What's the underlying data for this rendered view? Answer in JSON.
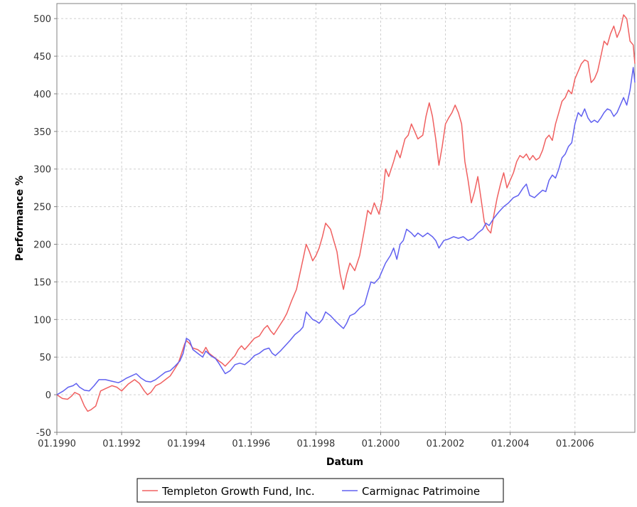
{
  "chart_data": {
    "type": "line",
    "xlabel": "Datum",
    "ylabel": "Performance %",
    "xlim": [
      1990.0,
      2007.85
    ],
    "ylim": [
      -50,
      520
    ],
    "x_ticks": [
      {
        "value": 1990,
        "label": "01.1990"
      },
      {
        "value": 1992,
        "label": "01.1992"
      },
      {
        "value": 1994,
        "label": "01.1994"
      },
      {
        "value": 1996,
        "label": "01.1996"
      },
      {
        "value": 1998,
        "label": "01.1998"
      },
      {
        "value": 2000,
        "label": "01.2000"
      },
      {
        "value": 2002,
        "label": "01.2002"
      },
      {
        "value": 2004,
        "label": "01.2004"
      },
      {
        "value": 2006,
        "label": "01.2006"
      }
    ],
    "y_ticks": [
      -50,
      0,
      50,
      100,
      150,
      200,
      250,
      300,
      350,
      400,
      450,
      500
    ],
    "grid": true,
    "legend_position": "bottom",
    "series": [
      {
        "name": "Templeton Growth Fund, Inc.",
        "color": "#f06060",
        "points": [
          [
            1990.0,
            0
          ],
          [
            1990.17,
            -5
          ],
          [
            1990.33,
            -6
          ],
          [
            1990.45,
            -2
          ],
          [
            1990.55,
            3
          ],
          [
            1990.7,
            0
          ],
          [
            1990.85,
            -15
          ],
          [
            1990.95,
            -22
          ],
          [
            1991.05,
            -20
          ],
          [
            1991.2,
            -15
          ],
          [
            1991.35,
            5
          ],
          [
            1991.5,
            8
          ],
          [
            1991.7,
            12
          ],
          [
            1991.85,
            10
          ],
          [
            1992.0,
            5
          ],
          [
            1992.2,
            14
          ],
          [
            1992.4,
            20
          ],
          [
            1992.55,
            15
          ],
          [
            1992.7,
            5
          ],
          [
            1992.8,
            0
          ],
          [
            1992.9,
            3
          ],
          [
            1993.05,
            12
          ],
          [
            1993.2,
            15
          ],
          [
            1993.35,
            20
          ],
          [
            1993.5,
            25
          ],
          [
            1993.65,
            35
          ],
          [
            1993.75,
            42
          ],
          [
            1993.85,
            55
          ],
          [
            1993.95,
            68
          ],
          [
            1994.0,
            72
          ],
          [
            1994.1,
            68
          ],
          [
            1994.2,
            62
          ],
          [
            1994.35,
            60
          ],
          [
            1994.5,
            55
          ],
          [
            1994.6,
            63
          ],
          [
            1994.7,
            55
          ],
          [
            1994.85,
            50
          ],
          [
            1995.0,
            45
          ],
          [
            1995.1,
            42
          ],
          [
            1995.2,
            38
          ],
          [
            1995.35,
            45
          ],
          [
            1995.5,
            52
          ],
          [
            1995.6,
            60
          ],
          [
            1995.7,
            65
          ],
          [
            1995.8,
            60
          ],
          [
            1996.0,
            70
          ],
          [
            1996.1,
            75
          ],
          [
            1996.25,
            78
          ],
          [
            1996.4,
            88
          ],
          [
            1996.5,
            92
          ],
          [
            1996.6,
            85
          ],
          [
            1996.7,
            80
          ],
          [
            1996.85,
            90
          ],
          [
            1997.0,
            100
          ],
          [
            1997.1,
            108
          ],
          [
            1997.25,
            125
          ],
          [
            1997.4,
            140
          ],
          [
            1997.5,
            160
          ],
          [
            1997.6,
            180
          ],
          [
            1997.7,
            200
          ],
          [
            1997.8,
            190
          ],
          [
            1997.9,
            178
          ],
          [
            1998.0,
            185
          ],
          [
            1998.1,
            195
          ],
          [
            1998.2,
            210
          ],
          [
            1998.3,
            228
          ],
          [
            1998.45,
            220
          ],
          [
            1998.55,
            205
          ],
          [
            1998.65,
            190
          ],
          [
            1998.75,
            160
          ],
          [
            1998.85,
            140
          ],
          [
            1998.95,
            160
          ],
          [
            1999.05,
            175
          ],
          [
            1999.2,
            165
          ],
          [
            1999.35,
            185
          ],
          [
            1999.5,
            220
          ],
          [
            1999.6,
            245
          ],
          [
            1999.7,
            240
          ],
          [
            1999.8,
            255
          ],
          [
            1999.95,
            240
          ],
          [
            2000.05,
            260
          ],
          [
            2000.15,
            300
          ],
          [
            2000.25,
            290
          ],
          [
            2000.4,
            310
          ],
          [
            2000.5,
            325
          ],
          [
            2000.6,
            315
          ],
          [
            2000.75,
            340
          ],
          [
            2000.85,
            345
          ],
          [
            2000.95,
            360
          ],
          [
            2001.05,
            350
          ],
          [
            2001.15,
            340
          ],
          [
            2001.3,
            345
          ],
          [
            2001.4,
            370
          ],
          [
            2001.5,
            388
          ],
          [
            2001.6,
            370
          ],
          [
            2001.7,
            340
          ],
          [
            2001.8,
            305
          ],
          [
            2001.9,
            330
          ],
          [
            2002.0,
            360
          ],
          [
            2002.1,
            368
          ],
          [
            2002.2,
            375
          ],
          [
            2002.3,
            385
          ],
          [
            2002.4,
            375
          ],
          [
            2002.5,
            360
          ],
          [
            2002.6,
            310
          ],
          [
            2002.7,
            285
          ],
          [
            2002.8,
            255
          ],
          [
            2002.9,
            270
          ],
          [
            2003.0,
            290
          ],
          [
            2003.1,
            260
          ],
          [
            2003.2,
            230
          ],
          [
            2003.3,
            220
          ],
          [
            2003.4,
            215
          ],
          [
            2003.5,
            240
          ],
          [
            2003.6,
            262
          ],
          [
            2003.7,
            280
          ],
          [
            2003.8,
            295
          ],
          [
            2003.9,
            275
          ],
          [
            2004.0,
            285
          ],
          [
            2004.1,
            295
          ],
          [
            2004.2,
            310
          ],
          [
            2004.3,
            318
          ],
          [
            2004.4,
            315
          ],
          [
            2004.5,
            320
          ],
          [
            2004.6,
            312
          ],
          [
            2004.7,
            318
          ],
          [
            2004.8,
            312
          ],
          [
            2004.9,
            315
          ],
          [
            2005.0,
            325
          ],
          [
            2005.1,
            340
          ],
          [
            2005.2,
            345
          ],
          [
            2005.3,
            338
          ],
          [
            2005.4,
            360
          ],
          [
            2005.5,
            375
          ],
          [
            2005.6,
            390
          ],
          [
            2005.7,
            395
          ],
          [
            2005.8,
            405
          ],
          [
            2005.9,
            400
          ],
          [
            2006.0,
            420
          ],
          [
            2006.1,
            430
          ],
          [
            2006.2,
            440
          ],
          [
            2006.3,
            445
          ],
          [
            2006.4,
            443
          ],
          [
            2006.5,
            415
          ],
          [
            2006.6,
            420
          ],
          [
            2006.7,
            430
          ],
          [
            2006.8,
            450
          ],
          [
            2006.9,
            470
          ],
          [
            2007.0,
            465
          ],
          [
            2007.1,
            480
          ],
          [
            2007.2,
            490
          ],
          [
            2007.3,
            475
          ],
          [
            2007.4,
            485
          ],
          [
            2007.5,
            505
          ],
          [
            2007.6,
            500
          ],
          [
            2007.7,
            470
          ],
          [
            2007.8,
            465
          ],
          [
            2007.85,
            440
          ]
        ]
      },
      {
        "name": "Carmignac Patrimoine",
        "color": "#6060f0",
        "points": [
          [
            1990.0,
            0
          ],
          [
            1990.2,
            5
          ],
          [
            1990.35,
            10
          ],
          [
            1990.5,
            12
          ],
          [
            1990.6,
            15
          ],
          [
            1990.7,
            10
          ],
          [
            1990.85,
            6
          ],
          [
            1991.0,
            5
          ],
          [
            1991.15,
            12
          ],
          [
            1991.3,
            20
          ],
          [
            1991.5,
            20
          ],
          [
            1991.7,
            18
          ],
          [
            1991.9,
            16
          ],
          [
            1992.0,
            18
          ],
          [
            1992.15,
            22
          ],
          [
            1992.3,
            25
          ],
          [
            1992.45,
            28
          ],
          [
            1992.6,
            22
          ],
          [
            1992.75,
            18
          ],
          [
            1992.9,
            17
          ],
          [
            1993.05,
            20
          ],
          [
            1993.2,
            25
          ],
          [
            1993.35,
            30
          ],
          [
            1993.5,
            32
          ],
          [
            1993.65,
            38
          ],
          [
            1993.8,
            45
          ],
          [
            1993.9,
            55
          ],
          [
            1994.0,
            75
          ],
          [
            1994.1,
            72
          ],
          [
            1994.2,
            60
          ],
          [
            1994.35,
            55
          ],
          [
            1994.5,
            50
          ],
          [
            1994.6,
            58
          ],
          [
            1994.75,
            52
          ],
          [
            1994.9,
            48
          ],
          [
            1995.0,
            42
          ],
          [
            1995.1,
            35
          ],
          [
            1995.2,
            28
          ],
          [
            1995.35,
            32
          ],
          [
            1995.5,
            40
          ],
          [
            1995.65,
            42
          ],
          [
            1995.8,
            40
          ],
          [
            1995.95,
            45
          ],
          [
            1996.1,
            52
          ],
          [
            1996.25,
            55
          ],
          [
            1996.4,
            60
          ],
          [
            1996.55,
            62
          ],
          [
            1996.65,
            55
          ],
          [
            1996.75,
            52
          ],
          [
            1996.9,
            58
          ],
          [
            1997.05,
            65
          ],
          [
            1997.2,
            72
          ],
          [
            1997.35,
            80
          ],
          [
            1997.5,
            85
          ],
          [
            1997.6,
            90
          ],
          [
            1997.7,
            110
          ],
          [
            1997.8,
            105
          ],
          [
            1997.9,
            100
          ],
          [
            1998.0,
            98
          ],
          [
            1998.1,
            95
          ],
          [
            1998.2,
            100
          ],
          [
            1998.3,
            110
          ],
          [
            1998.45,
            105
          ],
          [
            1998.6,
            98
          ],
          [
            1998.75,
            92
          ],
          [
            1998.85,
            88
          ],
          [
            1998.95,
            95
          ],
          [
            1999.05,
            105
          ],
          [
            1999.2,
            108
          ],
          [
            1999.35,
            115
          ],
          [
            1999.5,
            120
          ],
          [
            1999.6,
            135
          ],
          [
            1999.7,
            150
          ],
          [
            1999.8,
            148
          ],
          [
            1999.95,
            155
          ],
          [
            2000.05,
            165
          ],
          [
            2000.15,
            175
          ],
          [
            2000.3,
            185
          ],
          [
            2000.4,
            195
          ],
          [
            2000.5,
            180
          ],
          [
            2000.6,
            200
          ],
          [
            2000.7,
            205
          ],
          [
            2000.8,
            220
          ],
          [
            2000.95,
            215
          ],
          [
            2001.05,
            210
          ],
          [
            2001.15,
            215
          ],
          [
            2001.3,
            210
          ],
          [
            2001.45,
            215
          ],
          [
            2001.6,
            210
          ],
          [
            2001.7,
            205
          ],
          [
            2001.8,
            195
          ],
          [
            2001.95,
            205
          ],
          [
            2002.1,
            207
          ],
          [
            2002.25,
            210
          ],
          [
            2002.4,
            208
          ],
          [
            2002.55,
            210
          ],
          [
            2002.7,
            205
          ],
          [
            2002.85,
            208
          ],
          [
            2003.0,
            215
          ],
          [
            2003.15,
            220
          ],
          [
            2003.25,
            228
          ],
          [
            2003.35,
            225
          ],
          [
            2003.5,
            235
          ],
          [
            2003.65,
            243
          ],
          [
            2003.8,
            250
          ],
          [
            2003.95,
            255
          ],
          [
            2004.1,
            262
          ],
          [
            2004.25,
            265
          ],
          [
            2004.4,
            275
          ],
          [
            2004.5,
            280
          ],
          [
            2004.6,
            265
          ],
          [
            2004.75,
            262
          ],
          [
            2004.9,
            268
          ],
          [
            2005.0,
            272
          ],
          [
            2005.1,
            270
          ],
          [
            2005.2,
            285
          ],
          [
            2005.3,
            292
          ],
          [
            2005.4,
            288
          ],
          [
            2005.5,
            300
          ],
          [
            2005.6,
            315
          ],
          [
            2005.7,
            320
          ],
          [
            2005.8,
            330
          ],
          [
            2005.9,
            335
          ],
          [
            2006.0,
            360
          ],
          [
            2006.1,
            375
          ],
          [
            2006.2,
            370
          ],
          [
            2006.3,
            380
          ],
          [
            2006.4,
            368
          ],
          [
            2006.5,
            362
          ],
          [
            2006.6,
            365
          ],
          [
            2006.7,
            362
          ],
          [
            2006.8,
            368
          ],
          [
            2006.9,
            375
          ],
          [
            2007.0,
            380
          ],
          [
            2007.1,
            378
          ],
          [
            2007.2,
            370
          ],
          [
            2007.3,
            375
          ],
          [
            2007.4,
            385
          ],
          [
            2007.5,
            395
          ],
          [
            2007.6,
            385
          ],
          [
            2007.7,
            405
          ],
          [
            2007.8,
            435
          ],
          [
            2007.85,
            415
          ]
        ]
      }
    ]
  }
}
